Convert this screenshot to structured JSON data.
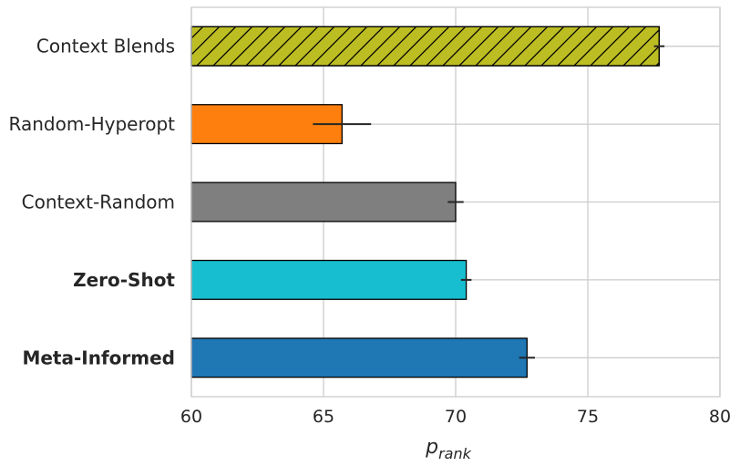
{
  "chart_data": {
    "type": "bar",
    "orientation": "horizontal",
    "categories": [
      "Context Blends",
      "Random-Hyperopt",
      "Context-Random",
      "Zero-Shot",
      "Meta-Informed"
    ],
    "bold_categories": [
      "Zero-Shot",
      "Meta-Informed"
    ],
    "values": [
      77.7,
      65.7,
      70.0,
      70.4,
      72.7
    ],
    "errors": [
      0.2,
      1.1,
      0.3,
      0.2,
      0.3
    ],
    "colors": [
      "#bcbd22",
      "#ff7f0e",
      "#7f7f7f",
      "#17becf",
      "#1f77b4"
    ],
    "hatched": [
      true,
      false,
      false,
      false,
      false
    ],
    "xlim": [
      60,
      80
    ],
    "xticks": [
      "60",
      "65",
      "70",
      "75",
      "80"
    ],
    "xlabel": "p",
    "xlabel_subscript": "rank",
    "title": "",
    "ylabel": "",
    "grid": true
  }
}
